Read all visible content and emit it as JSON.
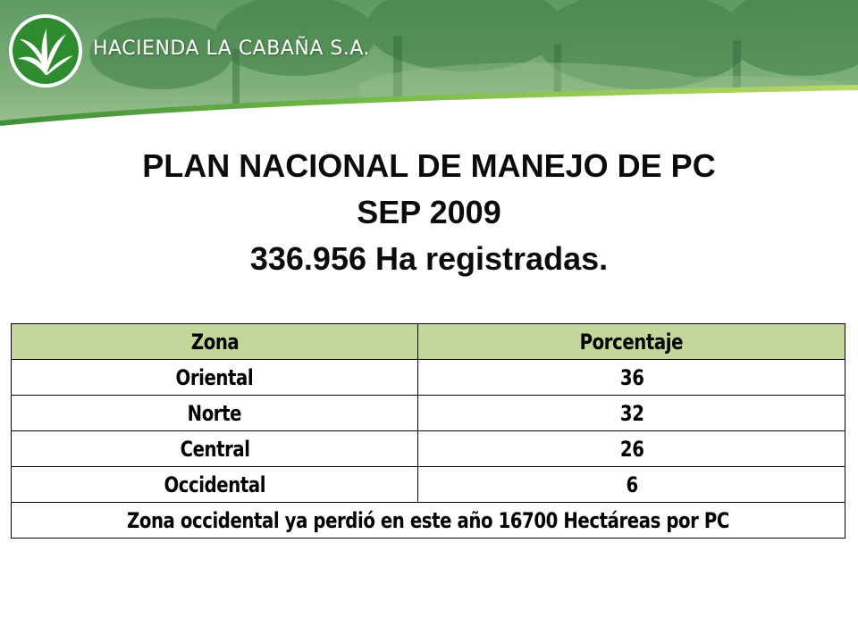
{
  "header": {
    "company_name": "HACIENDA LA CABAÑA S.A.",
    "logo": "palm-leaf-logo-icon",
    "colors": {
      "banner_green": "#4a9a3a",
      "logo_green": "#2e8b2e",
      "header_band": "#c4d79b"
    }
  },
  "title": {
    "line1": "PLAN NACIONAL DE MANEJO DE PC",
    "line2": "SEP 2009",
    "line3": "336.956 Ha registradas."
  },
  "table": {
    "headers": [
      "Zona",
      "Porcentaje"
    ],
    "rows": [
      {
        "zona": "Oriental",
        "porcentaje": "36"
      },
      {
        "zona": "Norte",
        "porcentaje": "32"
      },
      {
        "zona": "Central",
        "porcentaje": "26"
      },
      {
        "zona": "Occidental",
        "porcentaje": "6"
      }
    ],
    "footer": "Zona occidental ya perdió en este año 16700 Hectáreas por PC"
  }
}
